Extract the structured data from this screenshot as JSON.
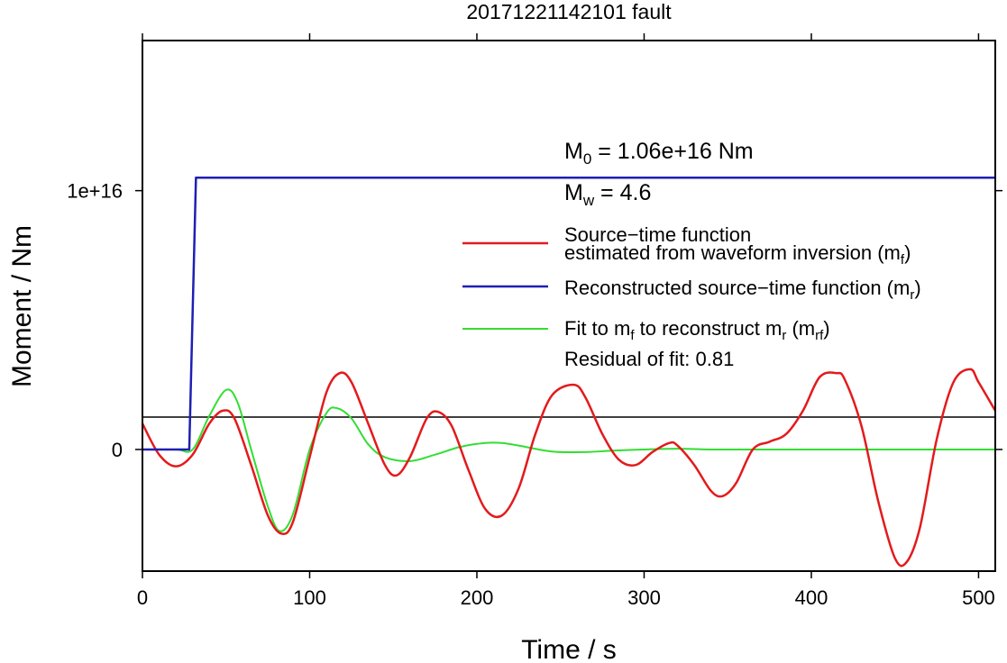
{
  "chart_data": {
    "type": "line",
    "title": "20171221142101 fault",
    "xlabel": "Time / s",
    "ylabel": "Moment / Nm",
    "xlim": [
      0,
      510
    ],
    "ylim": [
      -4700000000000000.0,
      1.58e+16
    ],
    "x_ticks": [
      {
        "value": 0,
        "label": "0"
      },
      {
        "value": 100,
        "label": "100"
      },
      {
        "value": 200,
        "label": "200"
      },
      {
        "value": 300,
        "label": "300"
      },
      {
        "value": 400,
        "label": "400"
      },
      {
        "value": 500,
        "label": "500"
      }
    ],
    "y_ticks": [
      {
        "value": 0,
        "label": "0"
      },
      {
        "value": 1e+16,
        "label": "1e+16"
      }
    ],
    "grid": false,
    "legend_position": "right",
    "annotations": {
      "m0_symbol": "M",
      "m0_sub": "0",
      "m0_value": " = 1.06e+16 Nm",
      "mw_symbol": "M",
      "mw_sub": "w",
      "mw_value": " = 4.6",
      "residual": "Residual of fit: 0.81"
    },
    "legend": [
      {
        "key": "mf",
        "color": "#e31a1c",
        "line1": "Source−time function",
        "line2_prefix": "estimated from waveform inversion (m",
        "line2_sub": "f",
        "line2_suffix": ")"
      },
      {
        "key": "mr",
        "color": "#1f1fb4",
        "prefix": "Reconstructed source−time function (m",
        "sub": "r",
        "suffix": ")"
      },
      {
        "key": "mrf",
        "color": "#33dd33",
        "p1": "Fit to m",
        "s1": "f",
        "p2": " to reconstruct m",
        "s2": "r",
        "p3": " (m",
        "s3": "rf",
        "p4": ")"
      }
    ],
    "series": [
      {
        "key": "mf",
        "color": "#e31a1c",
        "x": [
          0,
          10,
          20,
          30,
          40,
          48,
          55,
          65,
          75,
          83,
          90,
          100,
          110,
          118,
          125,
          135,
          145,
          152,
          160,
          170,
          177,
          185,
          195,
          205,
          215,
          225,
          235,
          245,
          258,
          265,
          275,
          285,
          295,
          305,
          315,
          320,
          330,
          340,
          347,
          355,
          365,
          375,
          385,
          395,
          405,
          415,
          420,
          430,
          440,
          450,
          457,
          465,
          475,
          485,
          495,
          500,
          510
        ],
        "y": [
          1000000000000000.0,
          -200000000000000.0,
          -650000000000000.0,
          -200000000000000.0,
          1000000000000000.0,
          1500000000000000.0,
          1200000000000000.0,
          -600000000000000.0,
          -2550000000000000.0,
          -3250000000000000.0,
          -2800000000000000.0,
          -300000000000000.0,
          2200000000000000.0,
          2950000000000000.0,
          2600000000000000.0,
          1000000000000000.0,
          -600000000000000.0,
          -1000000000000000.0,
          -300000000000000.0,
          1200000000000000.0,
          1450000000000000.0,
          900000000000000.0,
          -800000000000000.0,
          -2300000000000000.0,
          -2550000000000000.0,
          -1500000000000000.0,
          600000000000000.0,
          2100000000000000.0,
          2500000000000000.0,
          2000000000000000.0,
          600000000000000.0,
          -400000000000000.0,
          -600000000000000.0,
          -100000000000000.0,
          250000000000000.0,
          150000000000000.0,
          -600000000000000.0,
          -1600000000000000.0,
          -1800000000000000.0,
          -1300000000000000.0,
          0,
          300000000000000.0,
          600000000000000.0,
          1500000000000000.0,
          2800000000000000.0,
          2950000000000000.0,
          2700000000000000.0,
          900000000000000.0,
          -2000000000000000.0,
          -4200000000000000.0,
          -4350000000000000.0,
          -3000000000000000.0,
          400000000000000.0,
          2600000000000000.0,
          3100000000000000.0,
          2600000000000000.0,
          1500000000000000.0
        ]
      },
      {
        "key": "mr",
        "color": "#1f1fb4",
        "x": [
          0,
          28,
          32,
          510
        ],
        "y": [
          0,
          0,
          1.05e+16,
          1.05e+16
        ]
      },
      {
        "key": "mrf",
        "color": "#33dd33",
        "x": [
          0,
          20,
          30,
          40,
          50,
          57,
          65,
          75,
          82,
          90,
          100,
          110,
          116,
          125,
          135,
          145,
          160,
          175,
          190,
          205,
          215,
          225,
          245,
          265,
          280,
          300,
          320,
          340,
          370,
          400,
          450,
          510
        ],
        "y": [
          0,
          0,
          0,
          1300000000000000.0,
          2300000000000000.0,
          1800000000000000.0,
          0,
          -2200000000000000.0,
          -3150000000000000.0,
          -2500000000000000.0,
          0,
          1400000000000000.0,
          1600000000000000.0,
          1200000000000000.0,
          200000000000000.0,
          -300000000000000.0,
          -450000000000000.0,
          -200000000000000.0,
          100000000000000.0,
          250000000000000.0,
          250000000000000.0,
          150000000000000.0,
          -80000000000000.0,
          -100000000000000.0,
          -50000000000000.0,
          0,
          30000000000000.0,
          0,
          0,
          0,
          0,
          0
        ]
      }
    ]
  }
}
